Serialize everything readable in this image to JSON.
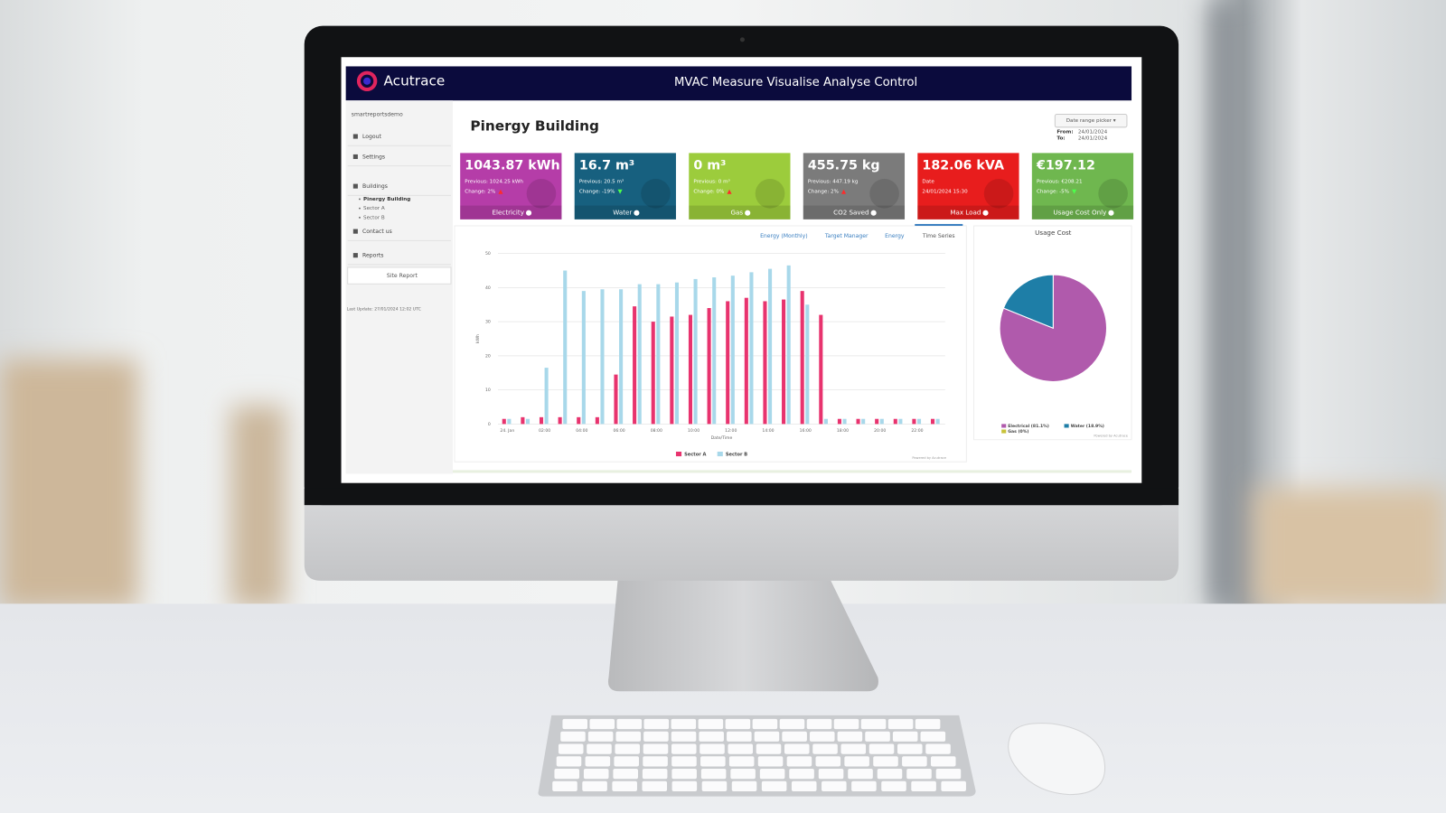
{
  "header": {
    "brand": "Acutrace",
    "title": "MVAC Measure Visualise Analyse Control"
  },
  "sidebar": {
    "user": "smartreportsdemo",
    "items": [
      "Logout",
      "Settings",
      "Buildings"
    ],
    "buildings": [
      "Pinergy Building",
      "Sector A",
      "Sector B"
    ],
    "more": [
      "Contact us",
      "Reports"
    ],
    "button": "Site Report",
    "last_update": "Last Update: 27/01/2024 12:02 UTC"
  },
  "page": {
    "title": "Pinergy Building",
    "date_picker": "Date range picker ▾",
    "from_label": "From:",
    "from": "24/01/2024",
    "to_label": "To:",
    "to": "24/01/2024"
  },
  "cards": [
    {
      "value": "1043.87 kWh",
      "lines": [
        "Previous: 1024.25 kWh",
        "Change: 2%"
      ],
      "trend": "up",
      "label": "Electricity",
      "color": "#b53da8"
    },
    {
      "value": "16.7 m³",
      "lines": [
        "Previous: 20.5 m³",
        "Change: -19%"
      ],
      "trend": "down",
      "label": "Water",
      "color": "#17607f"
    },
    {
      "value": "0 m³",
      "lines": [
        "Previous: 0 m³",
        "Change: 0%"
      ],
      "trend": "up",
      "label": "Gas",
      "color": "#9ccc3c"
    },
    {
      "value": "455.75 kg",
      "lines": [
        "Previous: 447.19 kg",
        "Change: 2%"
      ],
      "trend": "up",
      "label": "CO2 Saved",
      "color": "#7b7b7b"
    },
    {
      "value": "182.06 kVA",
      "lines": [
        "Date",
        "24/01/2024 15:30"
      ],
      "label": "Max Load",
      "color": "#e81d1d"
    },
    {
      "value": "€197.12",
      "lines": [
        "Previous: €208.21",
        "Change: -5%"
      ],
      "trend": "down",
      "label": "Usage Cost Only",
      "color": "#6fb74f"
    }
  ],
  "tabs": [
    "Energy (Monthly)",
    "Target Manager",
    "Energy",
    "Time Series"
  ],
  "active_tab": 3,
  "chart_data": [
    {
      "type": "bar",
      "y_label": "kWh",
      "x_label": "Date/Time",
      "credit": "Powered by Acutrace",
      "categories": [
        "24. Jan",
        null,
        "02:00",
        null,
        "04:00",
        null,
        "06:00",
        null,
        "08:00",
        null,
        "10:00",
        null,
        "12:00",
        null,
        "14:00",
        null,
        "16:00",
        null,
        "18:00",
        null,
        "20:00",
        null,
        "22:00",
        null
      ],
      "series": [
        {
          "name": "Sector A",
          "color": "#e8336e",
          "values": [
            1.5,
            2,
            2,
            2,
            2,
            2,
            14.5,
            34.5,
            30,
            31.5,
            32,
            34,
            36,
            37,
            36,
            36.5,
            39,
            32,
            1.5,
            1.5,
            1.5,
            1.5,
            1.5,
            1.5
          ]
        },
        {
          "name": "Sector B",
          "color": "#a8d8ea",
          "values": [
            1.5,
            1.5,
            16.5,
            45,
            39,
            39.5,
            39.5,
            41,
            41,
            41.5,
            42.5,
            43,
            43.5,
            44.5,
            45.5,
            46.5,
            35,
            1.5,
            1.5,
            1.5,
            1.5,
            1.5,
            1.5,
            1.5
          ]
        }
      ],
      "ylim": [
        0,
        50
      ],
      "yticks": [
        0,
        10,
        20,
        30,
        40,
        50
      ],
      "grid": true
    },
    {
      "type": "pie",
      "title": "Usage Cost",
      "credit": "Powered by Acutrace",
      "categories": [
        "Electrical (81.1%)",
        "Water (18.9%)",
        "Gas (0%)"
      ],
      "values": [
        81.1,
        18.9,
        0
      ],
      "colors": [
        "#b05aac",
        "#1e7ea7",
        "#c8c23a"
      ]
    }
  ]
}
